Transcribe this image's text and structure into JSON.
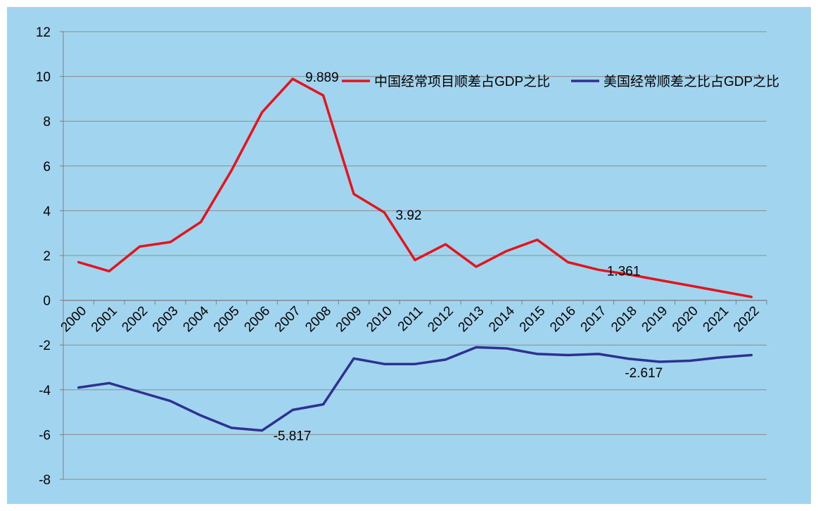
{
  "chart_data": {
    "type": "line",
    "x": [
      "2000",
      "2001",
      "2002",
      "2003",
      "2004",
      "2005",
      "2006",
      "2007",
      "2008",
      "2009",
      "2010",
      "2011",
      "2012",
      "2013",
      "2014",
      "2015",
      "2016",
      "2017",
      "2018",
      "2019",
      "2020",
      "2021",
      "2022"
    ],
    "series": [
      {
        "name": "中国经常项目顺差占GDP之比",
        "color": "#E3141C",
        "values": [
          1.7,
          1.3,
          2.4,
          2.6,
          3.5,
          5.8,
          8.4,
          9.889,
          9.15,
          4.75,
          3.92,
          1.8,
          2.5,
          1.5,
          2.2,
          2.7,
          1.7,
          1.361,
          1.15,
          0.9,
          0.65,
          0.4,
          0.15
        ],
        "data_labels": [
          {
            "x": "2007",
            "label": "9.889"
          },
          {
            "x": "2010",
            "label": "3.92"
          },
          {
            "x": "2017",
            "label": "1.361"
          }
        ]
      },
      {
        "name": "美国经常顺差之比占GDP之比",
        "color": "#2E3192",
        "values": [
          -3.9,
          -3.7,
          -4.1,
          -4.5,
          -5.15,
          -5.7,
          -5.817,
          -4.9,
          -4.65,
          -2.6,
          -2.85,
          -2.85,
          -2.65,
          -2.1,
          -2.15,
          -2.4,
          -2.45,
          -2.4,
          -2.617,
          -2.75,
          -2.7,
          -2.55,
          -2.45
        ],
        "data_labels": [
          {
            "x": "2006",
            "label": "-5.817"
          },
          {
            "x": "2018",
            "label": "-2.617"
          }
        ]
      }
    ],
    "y_ticks": [
      "12",
      "10",
      "8",
      "6",
      "4",
      "2",
      "0",
      "-2",
      "-4",
      "-6",
      "-8"
    ],
    "ylim": [
      -8,
      12
    ],
    "grid": true,
    "legend_position": "top-right",
    "colors": {
      "background": "#A0D4EF",
      "grid": "#8C8C8C",
      "axis": "#7F7F7F"
    }
  }
}
